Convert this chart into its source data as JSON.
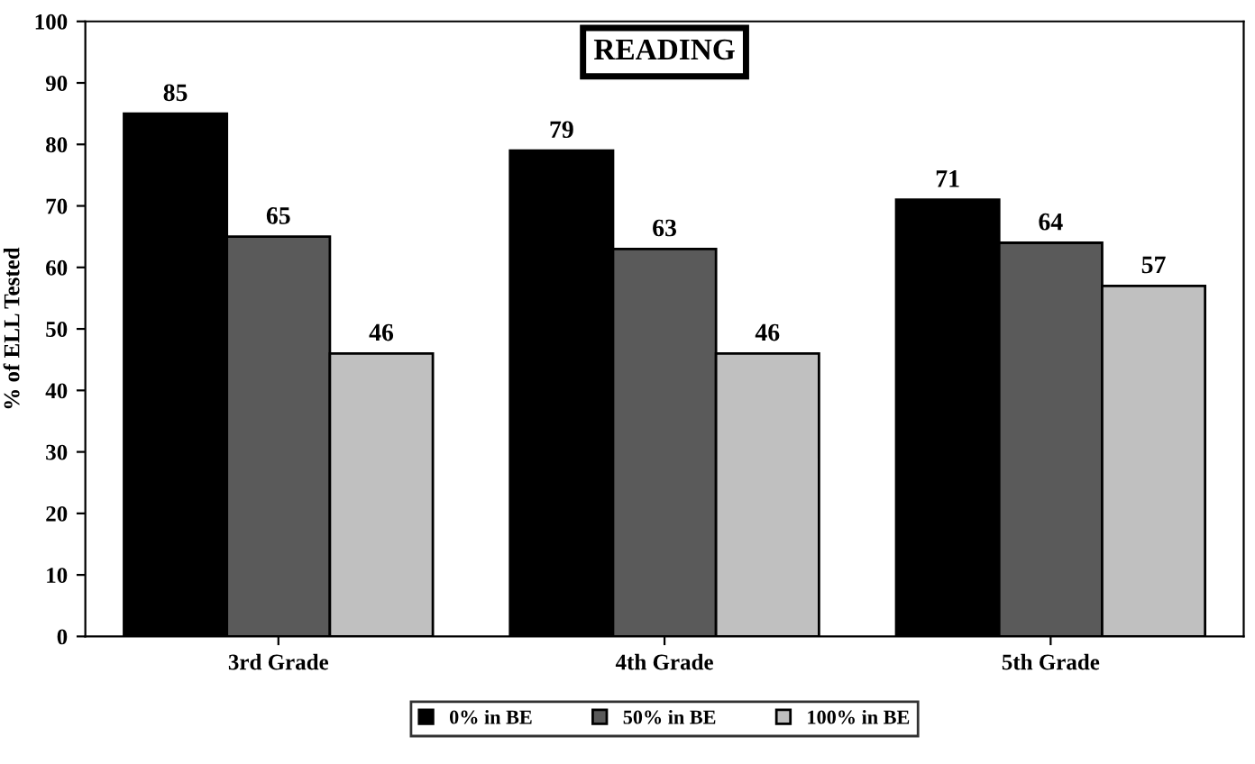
{
  "chart_data": {
    "type": "bar",
    "title": "READING",
    "ylabel": "% of ELL Tested",
    "categories": [
      "3rd Grade",
      "4th Grade",
      "5th Grade"
    ],
    "series": [
      {
        "name": "0% in BE",
        "color": "#000000",
        "values": [
          85,
          79,
          71
        ]
      },
      {
        "name": "50% in BE",
        "color": "#5a5a5a",
        "values": [
          65,
          63,
          64
        ]
      },
      {
        "name": "100% in BE",
        "color": "#c0c0c0",
        "values": [
          46,
          46,
          57
        ]
      }
    ],
    "ylim": [
      0,
      100
    ],
    "yticks": [
      0,
      10,
      20,
      30,
      40,
      50,
      60,
      70,
      80,
      90,
      100
    ],
    "grid": false,
    "legend": "bottom",
    "data_labels": true
  }
}
